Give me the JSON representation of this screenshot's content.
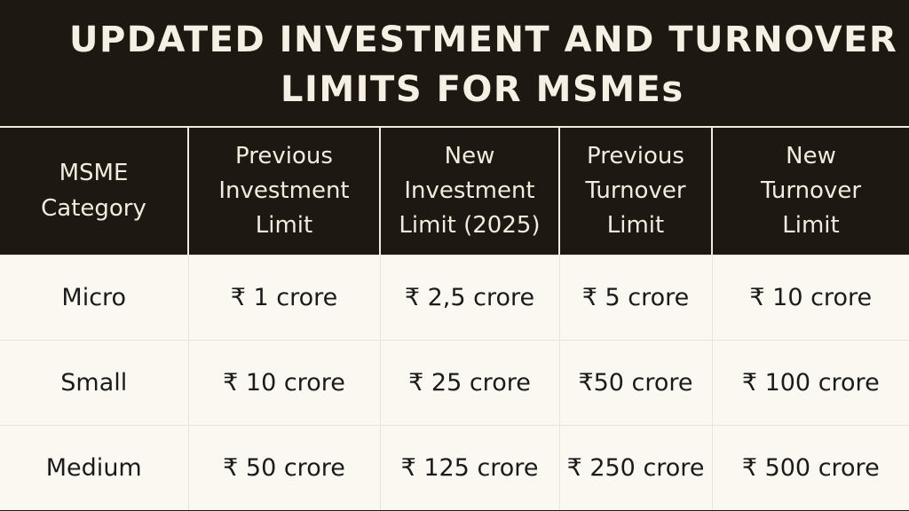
{
  "title": {
    "line1": "UPDATED INVESTMENT AND TURNOVER",
    "line2": "LIMITS FOR MSMEs"
  },
  "table": {
    "headers": [
      [
        "MSME",
        "Category"
      ],
      [
        "Previous",
        "Investment",
        "Limit"
      ],
      [
        "New",
        "Investment",
        "Limit (2025)"
      ],
      [
        "Previous",
        "Turnover",
        "Limit"
      ],
      [
        "New",
        "Turnover",
        "Limit"
      ]
    ],
    "rows": [
      [
        "Micro",
        "₹ 1 crore",
        "₹ 2,5 crore",
        "₹ 5 crore",
        "₹ 10 crore"
      ],
      [
        "Small",
        "₹ 10 crore",
        "₹ 25 crore",
        "₹50 crore",
        "₹ 100 crore"
      ],
      [
        "Medium",
        "₹ 50 crore",
        "₹ 125 crore",
        "₹ 250 crore",
        "₹ 500 crore"
      ]
    ]
  },
  "colors": {
    "dark_background": "#1e1812",
    "header_text": "#f2ebde",
    "body_background": "#fbf8f1",
    "body_text": "#1b1b1b"
  }
}
